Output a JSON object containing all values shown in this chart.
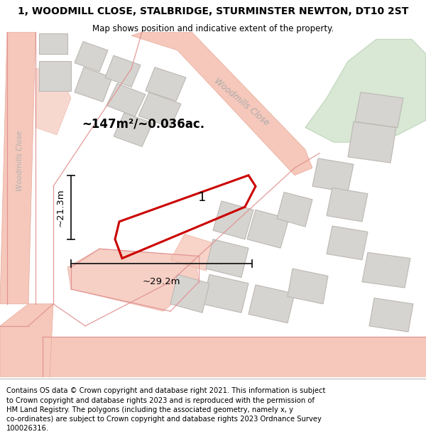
{
  "title": "1, WOODMILL CLOSE, STALBRIDGE, STURMINSTER NEWTON, DT10 2ST",
  "subtitle": "Map shows position and indicative extent of the property.",
  "footer": "Contains OS data © Crown copyright and database right 2021. This information is subject\nto Crown copyright and database rights 2023 and is reproduced with the permission of\nHM Land Registry. The polygons (including the associated geometry, namely x, y\nco-ordinates) are subject to Crown copyright and database rights 2023 Ordnance Survey\n100026316.",
  "map_bg": "#f2f0ed",
  "road_fill": "#f5c8bb",
  "road_edge": "#e8a898",
  "building_fill": "#d6d4d0",
  "building_edge": "#bcb8b4",
  "green_fill": "#d8e8d4",
  "green_edge": "#c0d4bc",
  "prop_color": "#cc0000",
  "dim_color": "#1a1a1a",
  "street_color": "#aaaaaa",
  "area_text": "~147m²/~0.036ac.",
  "label_1": "1",
  "dim_w": "~29.2m",
  "dim_h": "~21.3m",
  "street_diag": "Woodmills Close",
  "street_vert": "Woodmills Close",
  "title_fs": 10,
  "subtitle_fs": 8.5,
  "footer_fs": 7.2,
  "area_fs": 12,
  "dim_fs": 9.5,
  "label_fs": 13
}
